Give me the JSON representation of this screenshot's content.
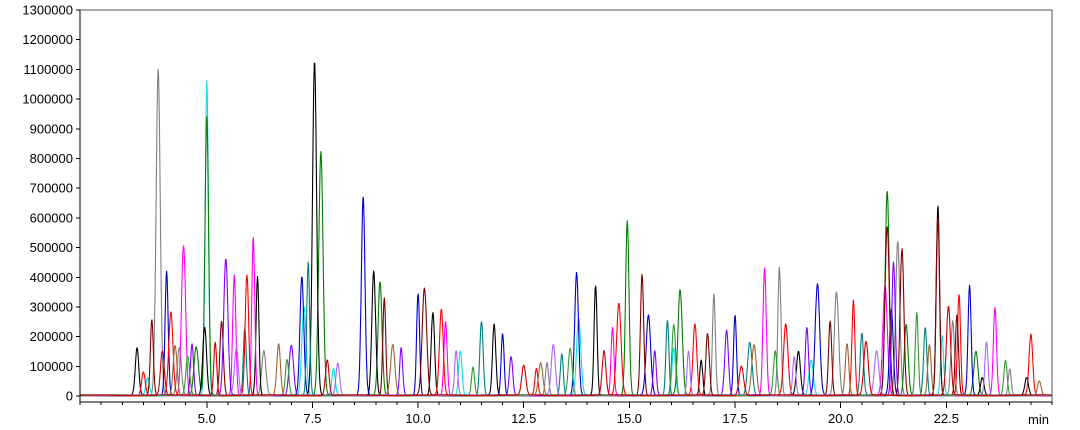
{
  "chart_data": {
    "type": "line",
    "title": "",
    "xlabel": "",
    "ylabel": "",
    "x_unit_label": "min",
    "xlim": [
      2.0,
      25.0
    ],
    "ylim": [
      -20000,
      1300000
    ],
    "y_ticks": [
      "1300000",
      "1200000",
      "1100000",
      "1000000",
      "900000",
      "800000",
      "700000",
      "600000",
      "500000",
      "400000",
      "300000",
      "200000",
      "100000",
      "0"
    ],
    "x_ticks": [
      "5.0",
      "7.5",
      "10.0",
      "12.5",
      "15.0",
      "17.5",
      "20.0",
      "22.5"
    ],
    "grid": false,
    "legend": "none",
    "colors": [
      "#808080",
      "#00e5e5",
      "#008000",
      "#000000",
      "#ff00ff",
      "#0000cc",
      "#008080",
      "#ff0000",
      "#800000",
      "#8000ff",
      "#996633",
      "#aa66ff",
      "#339933",
      "#cc0000"
    ],
    "series": [
      {
        "color": "#808080",
        "peaks": [
          [
            3.85,
            1100000
          ],
          [
            4.35,
            160000
          ],
          [
            6.35,
            150000
          ],
          [
            13.05,
            110000
          ],
          [
            17.0,
            340000
          ],
          [
            18.55,
            430000
          ],
          [
            19.9,
            350000
          ],
          [
            21.35,
            520000
          ],
          [
            22.65,
            250000
          ],
          [
            24.0,
            90000
          ]
        ]
      },
      {
        "color": "#00e5e5",
        "peaks": [
          [
            3.6,
            60000
          ],
          [
            5.0,
            1060000
          ],
          [
            7.3,
            300000
          ],
          [
            8.0,
            90000
          ],
          [
            11.0,
            150000
          ],
          [
            13.8,
            260000
          ],
          [
            16.05,
            160000
          ],
          [
            19.3,
            120000
          ],
          [
            22.4,
            200000
          ]
        ]
      },
      {
        "color": "#008000",
        "peaks": [
          [
            4.75,
            165000
          ],
          [
            5.0,
            940000
          ],
          [
            7.7,
            820000
          ],
          [
            9.1,
            385000
          ],
          [
            14.95,
            590000
          ],
          [
            16.2,
            355000
          ],
          [
            21.1,
            690000
          ],
          [
            21.55,
            240000
          ],
          [
            23.2,
            150000
          ]
        ]
      },
      {
        "color": "#000000",
        "peaks": [
          [
            3.35,
            160000
          ],
          [
            4.95,
            230000
          ],
          [
            6.2,
            400000
          ],
          [
            7.55,
            1125000
          ],
          [
            8.95,
            420000
          ],
          [
            10.35,
            280000
          ],
          [
            11.8,
            240000
          ],
          [
            14.2,
            370000
          ],
          [
            16.7,
            120000
          ],
          [
            19.0,
            150000
          ],
          [
            22.3,
            640000
          ],
          [
            23.35,
            60000
          ],
          [
            24.4,
            60000
          ]
        ]
      },
      {
        "color": "#ff00ff",
        "peaks": [
          [
            4.45,
            505000
          ],
          [
            5.65,
            405000
          ],
          [
            6.1,
            535000
          ],
          [
            10.65,
            250000
          ],
          [
            14.6,
            230000
          ],
          [
            18.2,
            430000
          ],
          [
            21.05,
            370000
          ],
          [
            23.65,
            295000
          ]
        ]
      },
      {
        "color": "#0000cc",
        "peaks": [
          [
            4.05,
            420000
          ],
          [
            7.25,
            400000
          ],
          [
            8.7,
            670000
          ],
          [
            10.0,
            345000
          ],
          [
            12.0,
            210000
          ],
          [
            13.75,
            415000
          ],
          [
            15.45,
            270000
          ],
          [
            17.5,
            270000
          ],
          [
            19.45,
            375000
          ],
          [
            21.2,
            290000
          ],
          [
            23.05,
            370000
          ]
        ]
      },
      {
        "color": "#008080",
        "peaks": [
          [
            5.9,
            230000
          ],
          [
            7.4,
            450000
          ],
          [
            11.5,
            250000
          ],
          [
            13.4,
            140000
          ],
          [
            15.9,
            255000
          ],
          [
            17.85,
            180000
          ],
          [
            20.5,
            210000
          ],
          [
            22.0,
            230000
          ]
        ]
      },
      {
        "color": "#ff0000",
        "peaks": [
          [
            3.5,
            80000
          ],
          [
            4.15,
            280000
          ],
          [
            5.95,
            405000
          ],
          [
            10.55,
            290000
          ],
          [
            12.8,
            90000
          ],
          [
            14.75,
            310000
          ],
          [
            16.55,
            240000
          ],
          [
            18.7,
            240000
          ],
          [
            20.3,
            320000
          ],
          [
            22.8,
            340000
          ],
          [
            24.5,
            205000
          ]
        ]
      },
      {
        "color": "#800000",
        "peaks": [
          [
            3.7,
            255000
          ],
          [
            5.35,
            250000
          ],
          [
            9.2,
            330000
          ],
          [
            10.15,
            360000
          ],
          [
            15.3,
            410000
          ],
          [
            16.85,
            210000
          ],
          [
            19.75,
            250000
          ],
          [
            21.1,
            570000
          ],
          [
            21.45,
            495000
          ],
          [
            22.3,
            600000
          ],
          [
            22.75,
            270000
          ]
        ]
      },
      {
        "color": "#8000ff",
        "peaks": [
          [
            4.65,
            175000
          ],
          [
            5.45,
            460000
          ],
          [
            7.0,
            170000
          ],
          [
            9.6,
            160000
          ],
          [
            12.2,
            130000
          ],
          [
            15.6,
            150000
          ],
          [
            17.3,
            220000
          ],
          [
            19.2,
            230000
          ],
          [
            21.25,
            450000
          ]
        ]
      },
      {
        "color": "#996633",
        "peaks": [
          [
            4.25,
            170000
          ],
          [
            6.7,
            175000
          ],
          [
            9.4,
            170000
          ],
          [
            12.9,
            110000
          ],
          [
            17.95,
            170000
          ],
          [
            20.15,
            175000
          ],
          [
            22.1,
            170000
          ],
          [
            24.7,
            50000
          ]
        ]
      },
      {
        "color": "#aa66ff",
        "peaks": [
          [
            5.7,
            160000
          ],
          [
            8.1,
            110000
          ],
          [
            10.9,
            150000
          ],
          [
            13.2,
            170000
          ],
          [
            16.4,
            150000
          ],
          [
            18.9,
            130000
          ],
          [
            20.85,
            150000
          ],
          [
            23.45,
            180000
          ]
        ]
      },
      {
        "color": "#339933",
        "peaks": [
          [
            4.55,
            130000
          ],
          [
            6.9,
            120000
          ],
          [
            11.3,
            95000
          ],
          [
            13.6,
            160000
          ],
          [
            16.05,
            240000
          ],
          [
            18.45,
            150000
          ],
          [
            21.8,
            280000
          ],
          [
            23.9,
            120000
          ]
        ]
      },
      {
        "color": "#cc0000",
        "peaks": [
          [
            3.95,
            150000
          ],
          [
            5.2,
            180000
          ],
          [
            7.85,
            120000
          ],
          [
            12.5,
            100000
          ],
          [
            14.4,
            150000
          ],
          [
            17.65,
            100000
          ],
          [
            20.6,
            180000
          ],
          [
            22.55,
            300000
          ]
        ]
      }
    ]
  }
}
